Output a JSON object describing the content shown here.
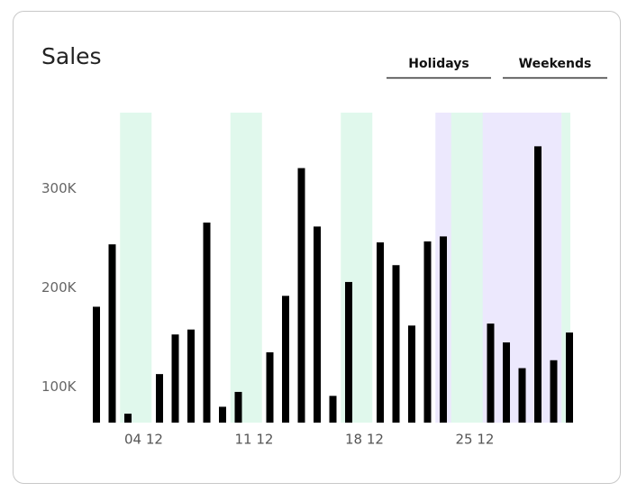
{
  "chart_data": {
    "type": "bar",
    "title": "Sales",
    "categories": [
      null,
      null,
      null,
      "04 12",
      null,
      null,
      null,
      null,
      null,
      null,
      "11 12",
      null,
      null,
      null,
      null,
      null,
      null,
      "18 12",
      null,
      null,
      null,
      null,
      null,
      null,
      "25 12",
      null,
      null,
      null,
      null,
      null,
      null
    ],
    "values": [
      181000,
      244000,
      73000,
      null,
      113000,
      153000,
      158000,
      266000,
      80000,
      95000,
      null,
      135000,
      192000,
      321000,
      262000,
      91000,
      206000,
      null,
      246000,
      223000,
      162000,
      247000,
      252000,
      null,
      null,
      164000,
      145000,
      119000,
      343000,
      127000,
      155000
    ],
    "color": "#000000",
    "ylim": [
      64000,
      377000
    ],
    "yticks": [
      {
        "value": 100000,
        "label": "100K"
      },
      {
        "value": 200000,
        "label": "200K"
      },
      {
        "value": 300000,
        "label": "300K"
      }
    ],
    "grid": false,
    "highlights": [
      {
        "name": "Holidays",
        "color": "#ece8fd",
        "ranges": [
          [
            22,
            29
          ]
        ]
      },
      {
        "name": "Weekends",
        "color": "#e0f8ec",
        "ranges": [
          [
            2,
            3
          ],
          [
            9,
            10
          ],
          [
            16,
            17
          ],
          [
            23,
            24
          ],
          [
            30,
            30
          ]
        ]
      }
    ]
  }
}
